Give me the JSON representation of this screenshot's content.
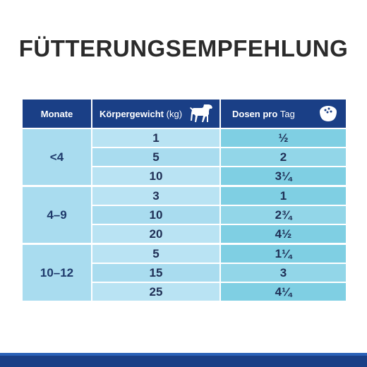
{
  "title": "FÜTTERUNGSEMPFEHLUNG",
  "header": {
    "monate": "Monate",
    "kg_bold": "Körpergewicht",
    "kg_light": "(kg)",
    "dosen_bold": "Dosen pro",
    "dosen_light": "Tag",
    "kg_icon": "dog-icon",
    "dosen_icon": "bowl-icon"
  },
  "groups": [
    {
      "age": "<4",
      "rows": [
        {
          "kg": "1",
          "dose": "½"
        },
        {
          "kg": "5",
          "dose": "2"
        },
        {
          "kg": "10",
          "dose": "3¼"
        }
      ]
    },
    {
      "age": "4–9",
      "rows": [
        {
          "kg": "3",
          "dose": "1"
        },
        {
          "kg": "10",
          "dose": "2¾"
        },
        {
          "kg": "20",
          "dose": "4½"
        }
      ]
    },
    {
      "age": "10–12",
      "rows": [
        {
          "kg": "5",
          "dose": "1¼"
        },
        {
          "kg": "15",
          "dose": "3"
        },
        {
          "kg": "25",
          "dose": "4¼"
        }
      ]
    }
  ],
  "colors": {
    "header": "#1a3f86",
    "age_cell": "#a9dcef",
    "kg_cell": "#b9e3f3",
    "dose_cell": "#7fcfe3"
  }
}
